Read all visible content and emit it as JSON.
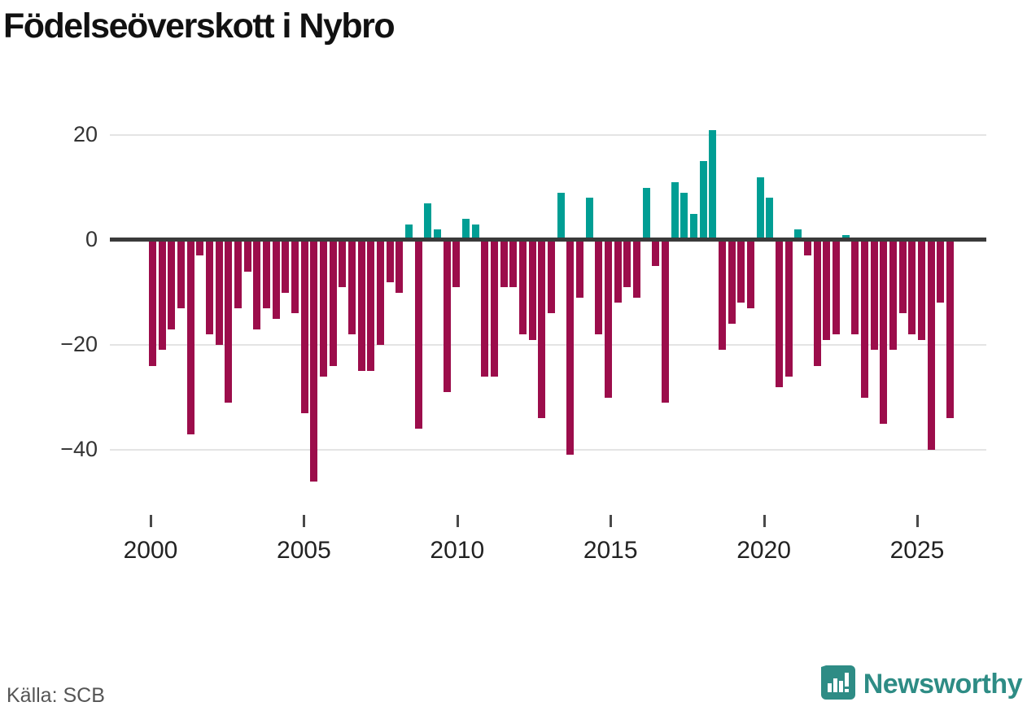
{
  "title": "Födelseöverskott i Nybro",
  "source": "Källa: SCB",
  "brand": {
    "name": "Newsworthy",
    "color": "#2e8c85",
    "icon": "newsworthy-bar-chart-bubble-icon"
  },
  "colors": {
    "positive": "#009e94",
    "negative": "#9c0d4b",
    "axis_line": "#3a3a3a",
    "grid": "#e4e4e4",
    "tick_label": "#333333"
  },
  "y_axis_labels": [
    "20",
    "0",
    "−20",
    "−40"
  ],
  "x_axis_labels": [
    "2000",
    "2005",
    "2010",
    "2015",
    "2020",
    "2025"
  ],
  "chart_data": {
    "type": "bar",
    "title": "Födelseöverskott i Nybro",
    "x_range": [
      2000,
      2026.3
    ],
    "xticks": [
      2000,
      2005,
      2010,
      2015,
      2020,
      2025
    ],
    "yticks": [
      20,
      0,
      -20,
      -40
    ],
    "ylim": [
      -47,
      23
    ],
    "grid": true,
    "legend": false,
    "positive_color": "#009e94",
    "negative_color": "#9c0d4b",
    "values": [
      -24,
      -21,
      -17,
      -13,
      -37,
      -3,
      -18,
      -20,
      -31,
      -13,
      -6,
      -17,
      -13,
      -15,
      -10,
      -14,
      -33,
      -46,
      -26,
      -24,
      -9,
      -18,
      -25,
      -25,
      -20,
      -8,
      -10,
      3,
      -36,
      7,
      2,
      -29,
      -9,
      4,
      3,
      -26,
      -26,
      -9,
      -9,
      -18,
      -19,
      -34,
      -14,
      9,
      -41,
      -11,
      8,
      -18,
      -30,
      -12,
      -9,
      -11,
      10,
      -5,
      -31,
      11,
      9,
      5,
      15,
      21,
      -21,
      -16,
      -12,
      -13,
      12,
      8,
      -28,
      -26,
      2,
      -3,
      -24,
      -19,
      -18,
      1,
      -18,
      -30,
      -21,
      -35,
      -21,
      -14,
      -18,
      -19,
      -40,
      -12,
      -34
    ]
  }
}
